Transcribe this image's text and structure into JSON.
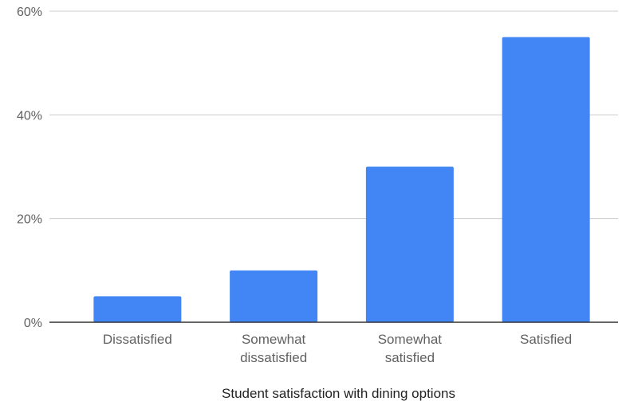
{
  "chart_data": {
    "type": "bar",
    "categories": [
      [
        "Dissatisfied"
      ],
      [
        "Somewhat",
        "dissatisfied"
      ],
      [
        "Somewhat",
        "satisfied"
      ],
      [
        "Satisfied"
      ]
    ],
    "values": [
      5,
      10,
      30,
      55
    ],
    "xlabel": "Student satisfaction with dining options",
    "ylabel": "",
    "ylim": [
      0,
      60
    ],
    "yticks": [
      0,
      20,
      40,
      60
    ],
    "ytick_labels": [
      "0%",
      "20%",
      "40%",
      "60%"
    ],
    "grid": true,
    "legend": "none",
    "colors": {
      "bar": "#4285f4",
      "grid": "#cccccc",
      "baseline": "#333333"
    }
  }
}
